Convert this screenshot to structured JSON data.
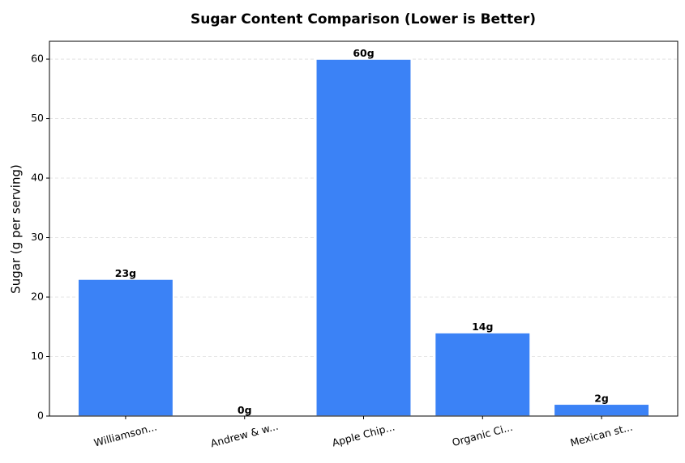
{
  "chart_data": {
    "type": "bar",
    "title": "Sugar Content Comparison (Lower is Better)",
    "y_label": "Sugar (g per serving)",
    "categories": [
      "Williamson...",
      "Andrew & w...",
      "Apple Chip...",
      "Organic Ci...",
      "Mexican st..."
    ],
    "values": [
      23,
      0,
      60,
      14,
      2
    ],
    "value_labels": [
      "23g",
      "0g",
      "60g",
      "14g",
      "2g"
    ],
    "color": "#3b82f6",
    "ylim": [
      0,
      63
    ],
    "yticks": [
      0,
      10,
      20,
      30,
      40,
      50,
      60
    ],
    "grid": true
  }
}
